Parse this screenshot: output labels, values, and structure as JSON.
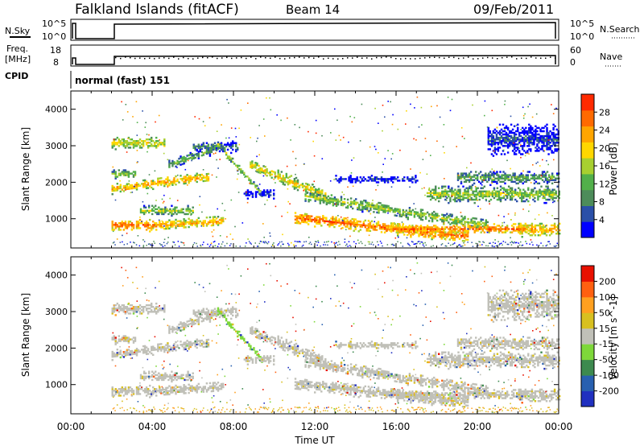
{
  "header": {
    "station": "Falkland Islands (fitACF)",
    "beam": "Beam 14",
    "date": "09/Feb/2011"
  },
  "top_panels": {
    "nsky_label": "N.Sky",
    "nsearch_label": "N.Search",
    "nsky_ticks": [
      "10^5",
      "10^0"
    ],
    "nsearch_ticks": [
      "10^5",
      "10^0"
    ],
    "freq_label_1": "Freq.",
    "freq_label_2": "[MHz]",
    "freq_ticks": [
      "18",
      "8"
    ],
    "nave_label": "Nave",
    "nave_ticks": [
      "60",
      "0"
    ],
    "cpid_label": "CPID",
    "cpid_text": "normal (fast) 151"
  },
  "colors": {
    "power": [
      "#0000ff",
      "#2a4fa8",
      "#4d8c5a",
      "#52b04a",
      "#a8d030",
      "#ffd700",
      "#ffa500",
      "#ff6a00",
      "#ff2a00"
    ],
    "velocity": [
      "#2030c0",
      "#2860b0",
      "#3d8a4f",
      "#7ed83a",
      "#c0c0b8",
      "#d8c020",
      "#ffa020",
      "#ff6010",
      "#e81000"
    ]
  },
  "chart_data": [
    {
      "type": "heatmap",
      "name": "power",
      "xlabel": "",
      "ylabel": "Slant Range [km]",
      "xlim": [
        0,
        24
      ],
      "ylim": [
        200,
        4500
      ],
      "yticks": [
        "4000",
        "3000",
        "2000",
        "1000"
      ],
      "colorbar_label": "Power [dB]",
      "colorbar_ticks": [
        "28",
        "24",
        "20",
        "16",
        "12",
        "8",
        "4"
      ]
    },
    {
      "type": "heatmap",
      "name": "velocity",
      "xlabel": "Time UT",
      "ylabel": "Slant Range [km]",
      "xlim": [
        0,
        24
      ],
      "ylim": [
        200,
        4500
      ],
      "xticks": [
        "00:00",
        "04:00",
        "08:00",
        "12:00",
        "16:00",
        "20:00",
        "00:00"
      ],
      "yticks": [
        "4000",
        "3000",
        "2000",
        "1000"
      ],
      "colorbar_label": "Velocity [m s^-1]",
      "colorbar_ticks": [
        "200",
        "100",
        "50",
        "15",
        "-15",
        "-50",
        "-100",
        "-200"
      ]
    }
  ]
}
